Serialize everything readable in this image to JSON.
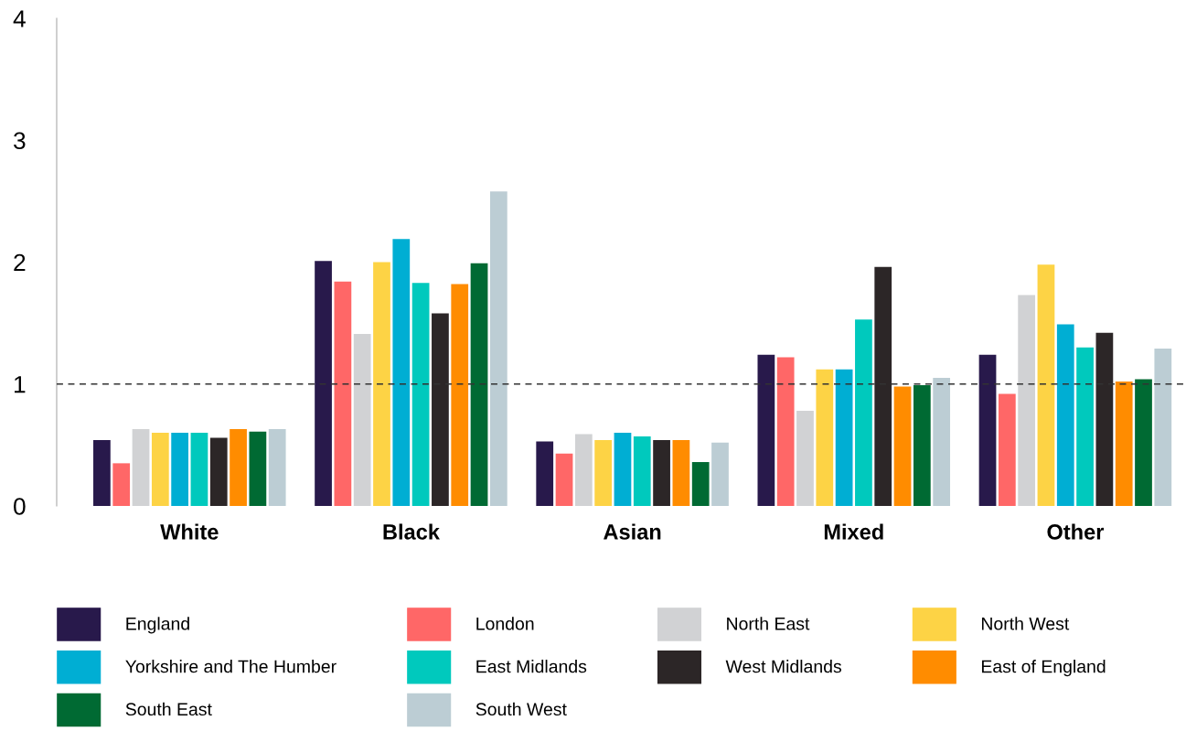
{
  "chart_data": {
    "type": "bar",
    "categories": [
      "White",
      "Black",
      "Asian",
      "Mixed",
      "Other"
    ],
    "ylim": [
      0,
      4
    ],
    "yticks": [
      0,
      1,
      2,
      3,
      4
    ],
    "grid": false,
    "legend": "bottom",
    "ref_lines": [
      {
        "axis": "y",
        "value": 1,
        "color": "#333333",
        "line_style": "dashed"
      }
    ],
    "series": [
      {
        "name": "England",
        "color": "#28194b",
        "values": [
          0.54,
          2.01,
          0.53,
          1.24,
          1.24
        ]
      },
      {
        "name": "London",
        "color": "#ff6767",
        "values": [
          0.35,
          1.84,
          0.43,
          1.22,
          0.92
        ]
      },
      {
        "name": "North East",
        "color": "#d1d2d4",
        "values": [
          0.63,
          1.41,
          0.59,
          0.78,
          1.73
        ]
      },
      {
        "name": "North West",
        "color": "#fdd345",
        "values": [
          0.6,
          2.0,
          0.54,
          1.12,
          1.98
        ]
      },
      {
        "name": "Yorkshire and The Humber",
        "color": "#00aed3",
        "values": [
          0.6,
          2.19,
          0.6,
          1.12,
          1.49
        ]
      },
      {
        "name": "East Midlands",
        "color": "#00c9bd",
        "values": [
          0.6,
          1.83,
          0.57,
          1.53,
          1.3
        ]
      },
      {
        "name": "West Midlands",
        "color": "#2c2627",
        "values": [
          0.56,
          1.58,
          0.54,
          1.96,
          1.42
        ]
      },
      {
        "name": "East of England",
        "color": "#ff8c00",
        "values": [
          0.63,
          1.82,
          0.54,
          0.98,
          1.02
        ]
      },
      {
        "name": "South East",
        "color": "#006a33",
        "values": [
          0.61,
          1.99,
          0.36,
          0.99,
          1.04
        ]
      },
      {
        "name": "South West",
        "color": "#bccdd4",
        "values": [
          0.63,
          2.58,
          0.52,
          1.05,
          1.29
        ]
      }
    ]
  }
}
